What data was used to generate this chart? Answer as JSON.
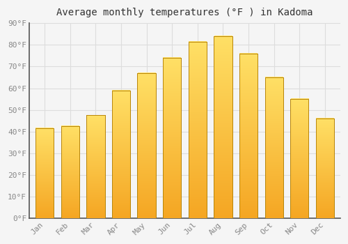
{
  "title": "Average monthly temperatures (°F ) in Kadoma",
  "months": [
    "Jan",
    "Feb",
    "Mar",
    "Apr",
    "May",
    "Jun",
    "Jul",
    "Aug",
    "Sep",
    "Oct",
    "Nov",
    "Dec"
  ],
  "values": [
    41.5,
    42.5,
    47.5,
    59.0,
    67.0,
    74.0,
    81.5,
    84.0,
    76.0,
    65.0,
    55.0,
    46.0
  ],
  "bar_color_bottom": "#F5A623",
  "bar_color_top": "#FFD966",
  "bar_edge_color": "#B8860B",
  "background_color": "#F5F5F5",
  "plot_bg_color": "#F5F5F5",
  "grid_color": "#DDDDDD",
  "ylim": [
    0,
    90
  ],
  "yticks": [
    0,
    10,
    20,
    30,
    40,
    50,
    60,
    70,
    80,
    90
  ],
  "ytick_labels": [
    "0°F",
    "10°F",
    "20°F",
    "30°F",
    "40°F",
    "50°F",
    "60°F",
    "70°F",
    "80°F",
    "90°F"
  ],
  "title_fontsize": 10,
  "tick_fontsize": 8,
  "font_family": "monospace",
  "tick_color": "#888888",
  "spine_color": "#555555"
}
